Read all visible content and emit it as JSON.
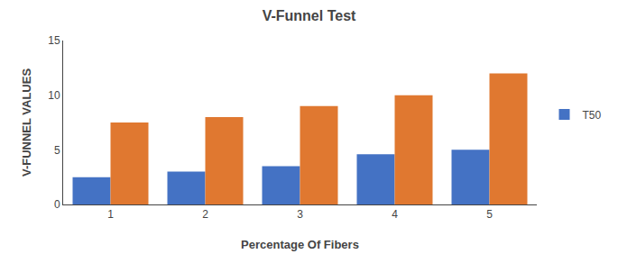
{
  "chart_data": {
    "type": "bar",
    "title": "V-Funnel Test",
    "xlabel": "Percentage Of Fibers",
    "ylabel": "V-FUNNEL VALUES",
    "categories": [
      1,
      2,
      3,
      4,
      5
    ],
    "series": [
      {
        "name": "T50",
        "color": "#4472C4",
        "values": [
          2.5,
          3.0,
          3.5,
          4.6,
          5.0
        ]
      },
      {
        "color": "#E07830",
        "values": [
          7.5,
          8.0,
          9.0,
          10.0,
          12.0
        ]
      }
    ],
    "ylim": [
      0,
      15
    ],
    "yticks": [
      0,
      5,
      10,
      15
    ],
    "grid": false,
    "legend": "right"
  }
}
